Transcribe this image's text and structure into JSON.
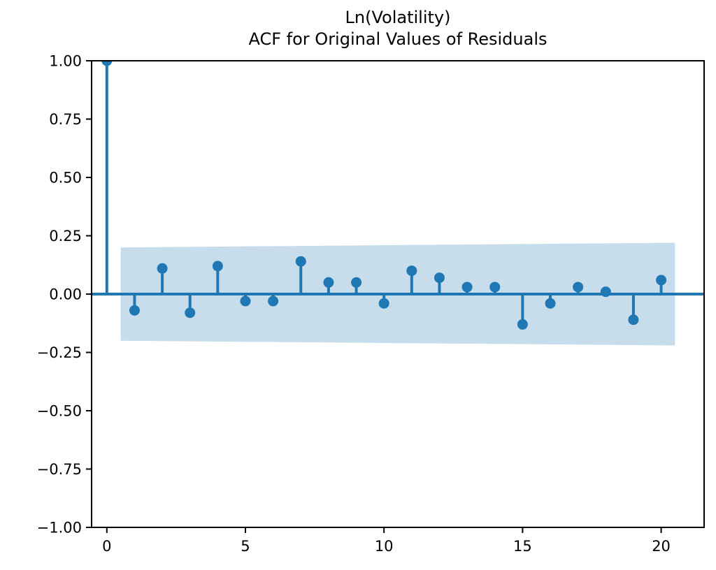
{
  "figure": {
    "background": "#ffffff"
  },
  "chart_data": {
    "type": "stem",
    "title": "Ln(Volatility)",
    "subtitle": "ACF for Original Values of Residuals",
    "xlabel": "",
    "ylabel": "",
    "x": [
      0,
      1,
      2,
      3,
      4,
      5,
      6,
      7,
      8,
      9,
      10,
      11,
      12,
      13,
      14,
      15,
      16,
      17,
      18,
      19,
      20
    ],
    "values": [
      1.0,
      -0.07,
      0.11,
      -0.08,
      0.12,
      -0.03,
      -0.03,
      0.14,
      0.05,
      0.05,
      -0.04,
      0.1,
      0.07,
      0.03,
      0.03,
      -0.13,
      -0.04,
      0.03,
      0.01,
      -0.11,
      0.06
    ],
    "confidence_band": {
      "x_start": 0.5,
      "x_end": 20.5,
      "top_start": 0.2,
      "top_end": 0.22,
      "bottom_start": -0.2,
      "bottom_end": -0.22
    },
    "xlim": [
      -0.55,
      21.55
    ],
    "ylim": [
      -1.0,
      1.0
    ],
    "xticks": {
      "values": [
        0,
        5,
        10,
        15,
        20
      ],
      "labels": [
        "0",
        "5",
        "10",
        "15",
        "20"
      ]
    },
    "yticks": {
      "values": [
        1.0,
        0.75,
        0.5,
        0.25,
        0.0,
        -0.25,
        -0.5,
        -0.75,
        -1.0
      ],
      "labels": [
        "1.00",
        "0.75",
        "0.50",
        "0.25",
        "0.00",
        "−0.25",
        "−0.50",
        "−0.75",
        "−1.00"
      ]
    },
    "colors": {
      "stem": "#1f77b4",
      "band": "#1f77b4",
      "band_alpha": 0.25,
      "axis": "#000000"
    },
    "grid": false,
    "legend": null
  }
}
